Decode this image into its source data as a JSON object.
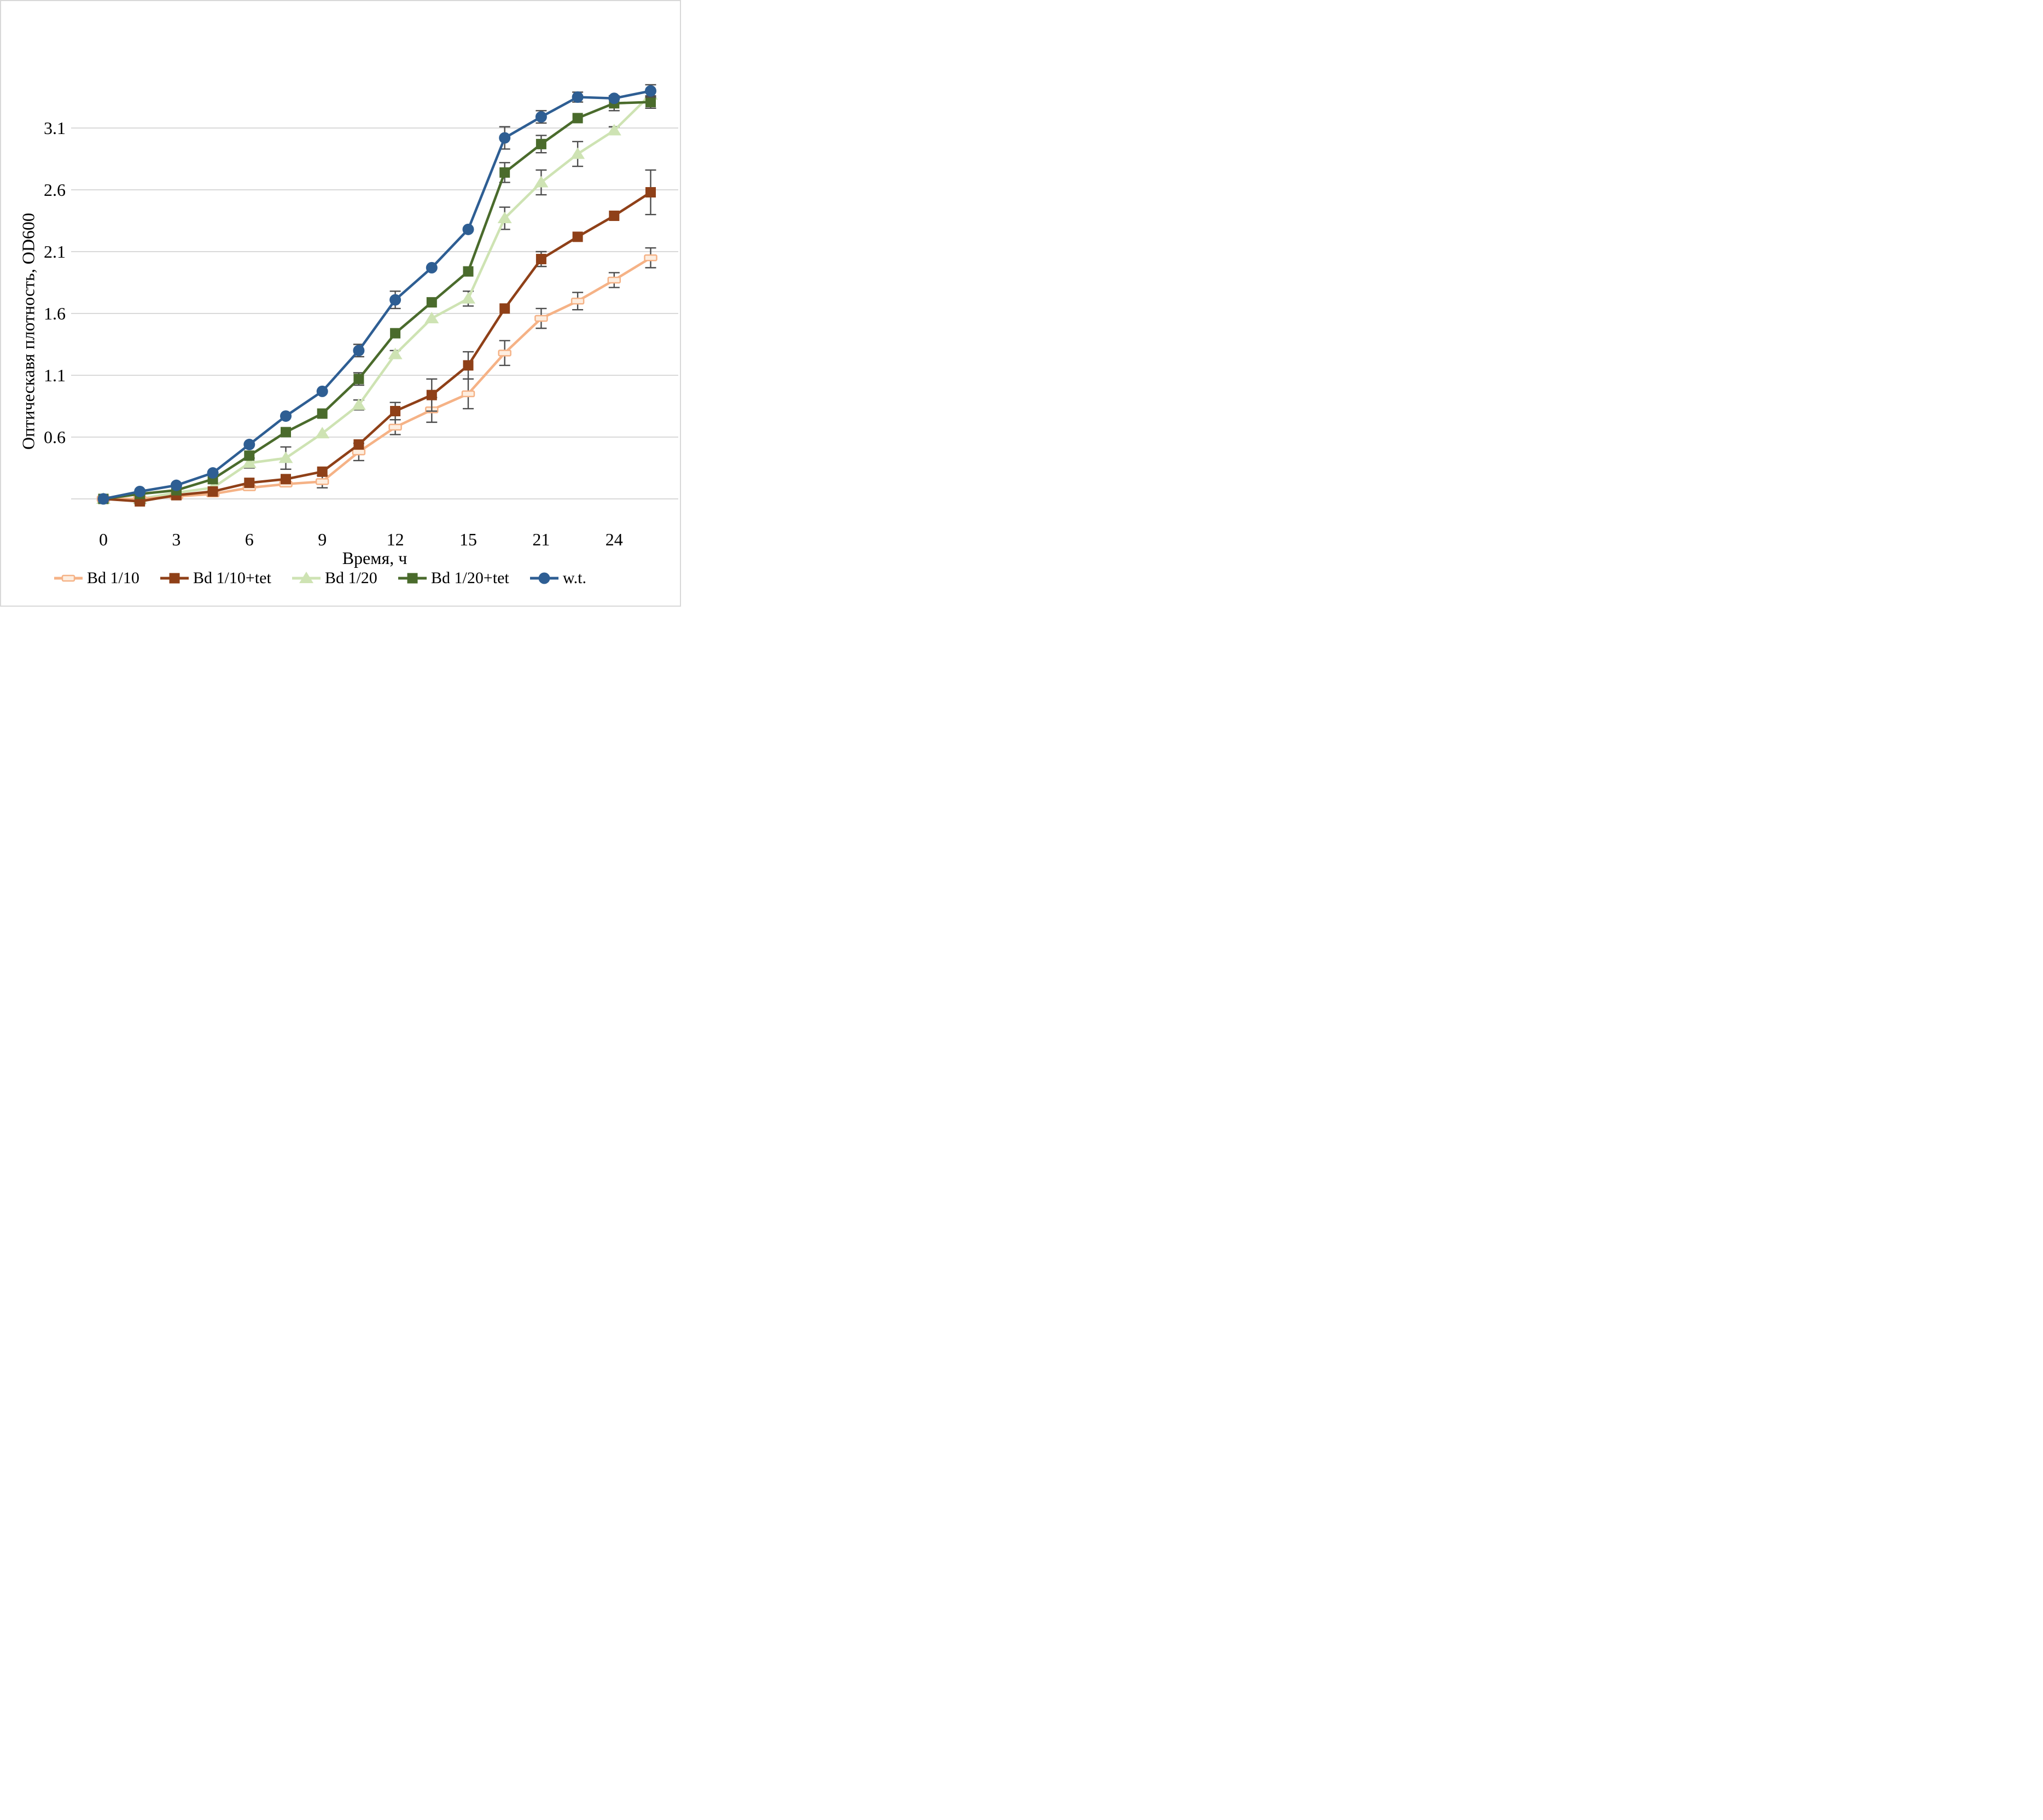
{
  "chart_data": {
    "type": "line",
    "title": "",
    "xlabel": "Время, ч",
    "ylabel": "Оптическавя плотность, OD600",
    "x": [
      0,
      1.5,
      3,
      4.5,
      6,
      7.5,
      9,
      10.5,
      12,
      13.5,
      15,
      18,
      21,
      22.5,
      24,
      25.5
    ],
    "x_tick_labels": [
      "0",
      "3",
      "6",
      "9",
      "12",
      "15",
      "21",
      "24"
    ],
    "x_tick_indices": [
      0,
      2,
      4,
      6,
      8,
      10,
      12,
      14
    ],
    "y_tick_labels": [
      "0.6",
      "1.1",
      "1.6",
      "2.1",
      "2.6",
      "3.1"
    ],
    "y_ticks": [
      0.6,
      1.1,
      1.6,
      2.1,
      2.6,
      3.1
    ],
    "y_baseline": 0.1,
    "ylim": [
      0.1,
      3.5
    ],
    "grid": "horizontal",
    "gridline_color": "#d9d9d9",
    "error_bar_color": "#4d4d4d",
    "legend_position": "bottom",
    "series": [
      {
        "name": "Bd 1/10",
        "color": "#f5b286",
        "marker": "open-bar",
        "marker_fill": "#fdeee0",
        "values": [
          0.1,
          0.1,
          0.12,
          0.14,
          0.19,
          0.22,
          0.24,
          0.48,
          0.68,
          0.82,
          0.95,
          1.28,
          1.56,
          1.7,
          1.87,
          2.05
        ],
        "errors": [
          0,
          0.03,
          0,
          0,
          0,
          0,
          0.05,
          0.07,
          0.06,
          0.1,
          0.12,
          0.1,
          0.08,
          0.07,
          0.06,
          0.08
        ]
      },
      {
        "name": "Bd 1/10+tet",
        "color": "#8f4018",
        "marker": "square",
        "values": [
          0.1,
          0.08,
          0.13,
          0.16,
          0.23,
          0.26,
          0.32,
          0.54,
          0.81,
          0.94,
          1.18,
          1.64,
          2.04,
          2.22,
          2.39,
          2.58
        ],
        "errors": [
          0,
          0.02,
          0,
          0,
          0,
          0,
          0,
          0,
          0.07,
          0.13,
          0.11,
          0,
          0.06,
          0,
          0,
          0.18
        ]
      },
      {
        "name": "Bd 1/20",
        "color": "#cee3b3",
        "marker": "triangle",
        "values": [
          0.1,
          0.1,
          0.15,
          0.19,
          0.39,
          0.43,
          0.63,
          0.86,
          1.27,
          1.56,
          1.72,
          2.37,
          2.66,
          2.89,
          3.08,
          3.37
        ],
        "errors": [
          0,
          0,
          0,
          0,
          0.04,
          0.09,
          0,
          0.04,
          0.03,
          0,
          0.06,
          0.09,
          0.1,
          0.1,
          0.03,
          0
        ]
      },
      {
        "name": "Bd 1/20+tet",
        "color": "#4a6b2c",
        "marker": "square",
        "values": [
          0.1,
          0.14,
          0.17,
          0.26,
          0.45,
          0.64,
          0.79,
          1.07,
          1.44,
          1.69,
          1.94,
          2.74,
          2.97,
          3.18,
          3.3,
          3.31
        ],
        "errors": [
          0,
          0,
          0,
          0,
          0,
          0,
          0,
          0.05,
          0,
          0,
          0,
          0.08,
          0.07,
          0,
          0.06,
          0.05
        ]
      },
      {
        "name": "w.t.",
        "color": "#2e5e93",
        "marker": "circle",
        "values": [
          0.1,
          0.16,
          0.21,
          0.31,
          0.54,
          0.77,
          0.97,
          1.3,
          1.71,
          1.97,
          2.28,
          3.02,
          3.19,
          3.35,
          3.34,
          3.4
        ],
        "errors": [
          0,
          0,
          0,
          0,
          0,
          0,
          0,
          0.05,
          0.07,
          0,
          0,
          0.09,
          0.05,
          0.04,
          0,
          0.05
        ]
      }
    ],
    "z_order": [
      2,
      0,
      1,
      3,
      4
    ]
  }
}
